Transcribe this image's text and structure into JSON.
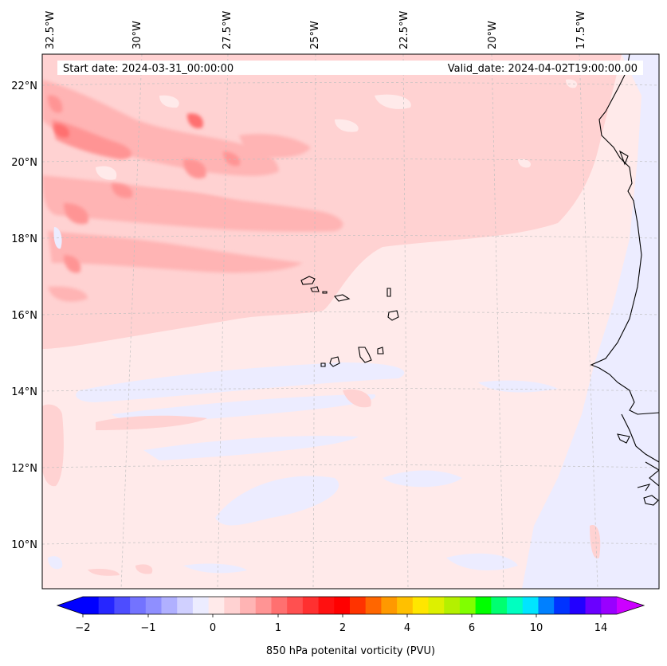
{
  "map": {
    "start_date": "Start date: 2024-03-31_00:00:00",
    "valid_date": "Valid_date: 2024-04-02T19:00:00.00",
    "lon_labels": [
      "32.5°W",
      "30°W",
      "27.5°W",
      "25°W",
      "22.5°W",
      "20°W",
      "17.5°W"
    ],
    "lat_labels": [
      "22°N",
      "20°N",
      "18°N",
      "16°N",
      "14°N",
      "12°N",
      "10°N"
    ],
    "gridlines": true
  },
  "colorbar": {
    "label": "850 hPa potenital vorticity (PVU)",
    "tick_labels": [
      "−2",
      "−1",
      "0",
      "1",
      "2",
      "4",
      "6",
      "10",
      "14"
    ],
    "extend": "both",
    "colors": [
      "#0000ff",
      "#2626ff",
      "#4d4dff",
      "#7373ff",
      "#8f8fff",
      "#b0b0ff",
      "#d0d0ff",
      "#ececff",
      "#ffeaea",
      "#ffd2d2",
      "#ffb4b4",
      "#ff9494",
      "#ff7070",
      "#ff5050",
      "#ff3030",
      "#ff1010",
      "#ff0000",
      "#ff3300",
      "#ff6600",
      "#ff9900",
      "#ffc000",
      "#ffe600",
      "#ddf000",
      "#b4f000",
      "#80ff00",
      "#00ff00",
      "#00ff70",
      "#00ffc0",
      "#00e5ff",
      "#0080ff",
      "#0033ff",
      "#2200ff",
      "#6a00ff",
      "#9900ff"
    ],
    "under_color": "#0000ff",
    "over_color": "#cc00ff"
  }
}
